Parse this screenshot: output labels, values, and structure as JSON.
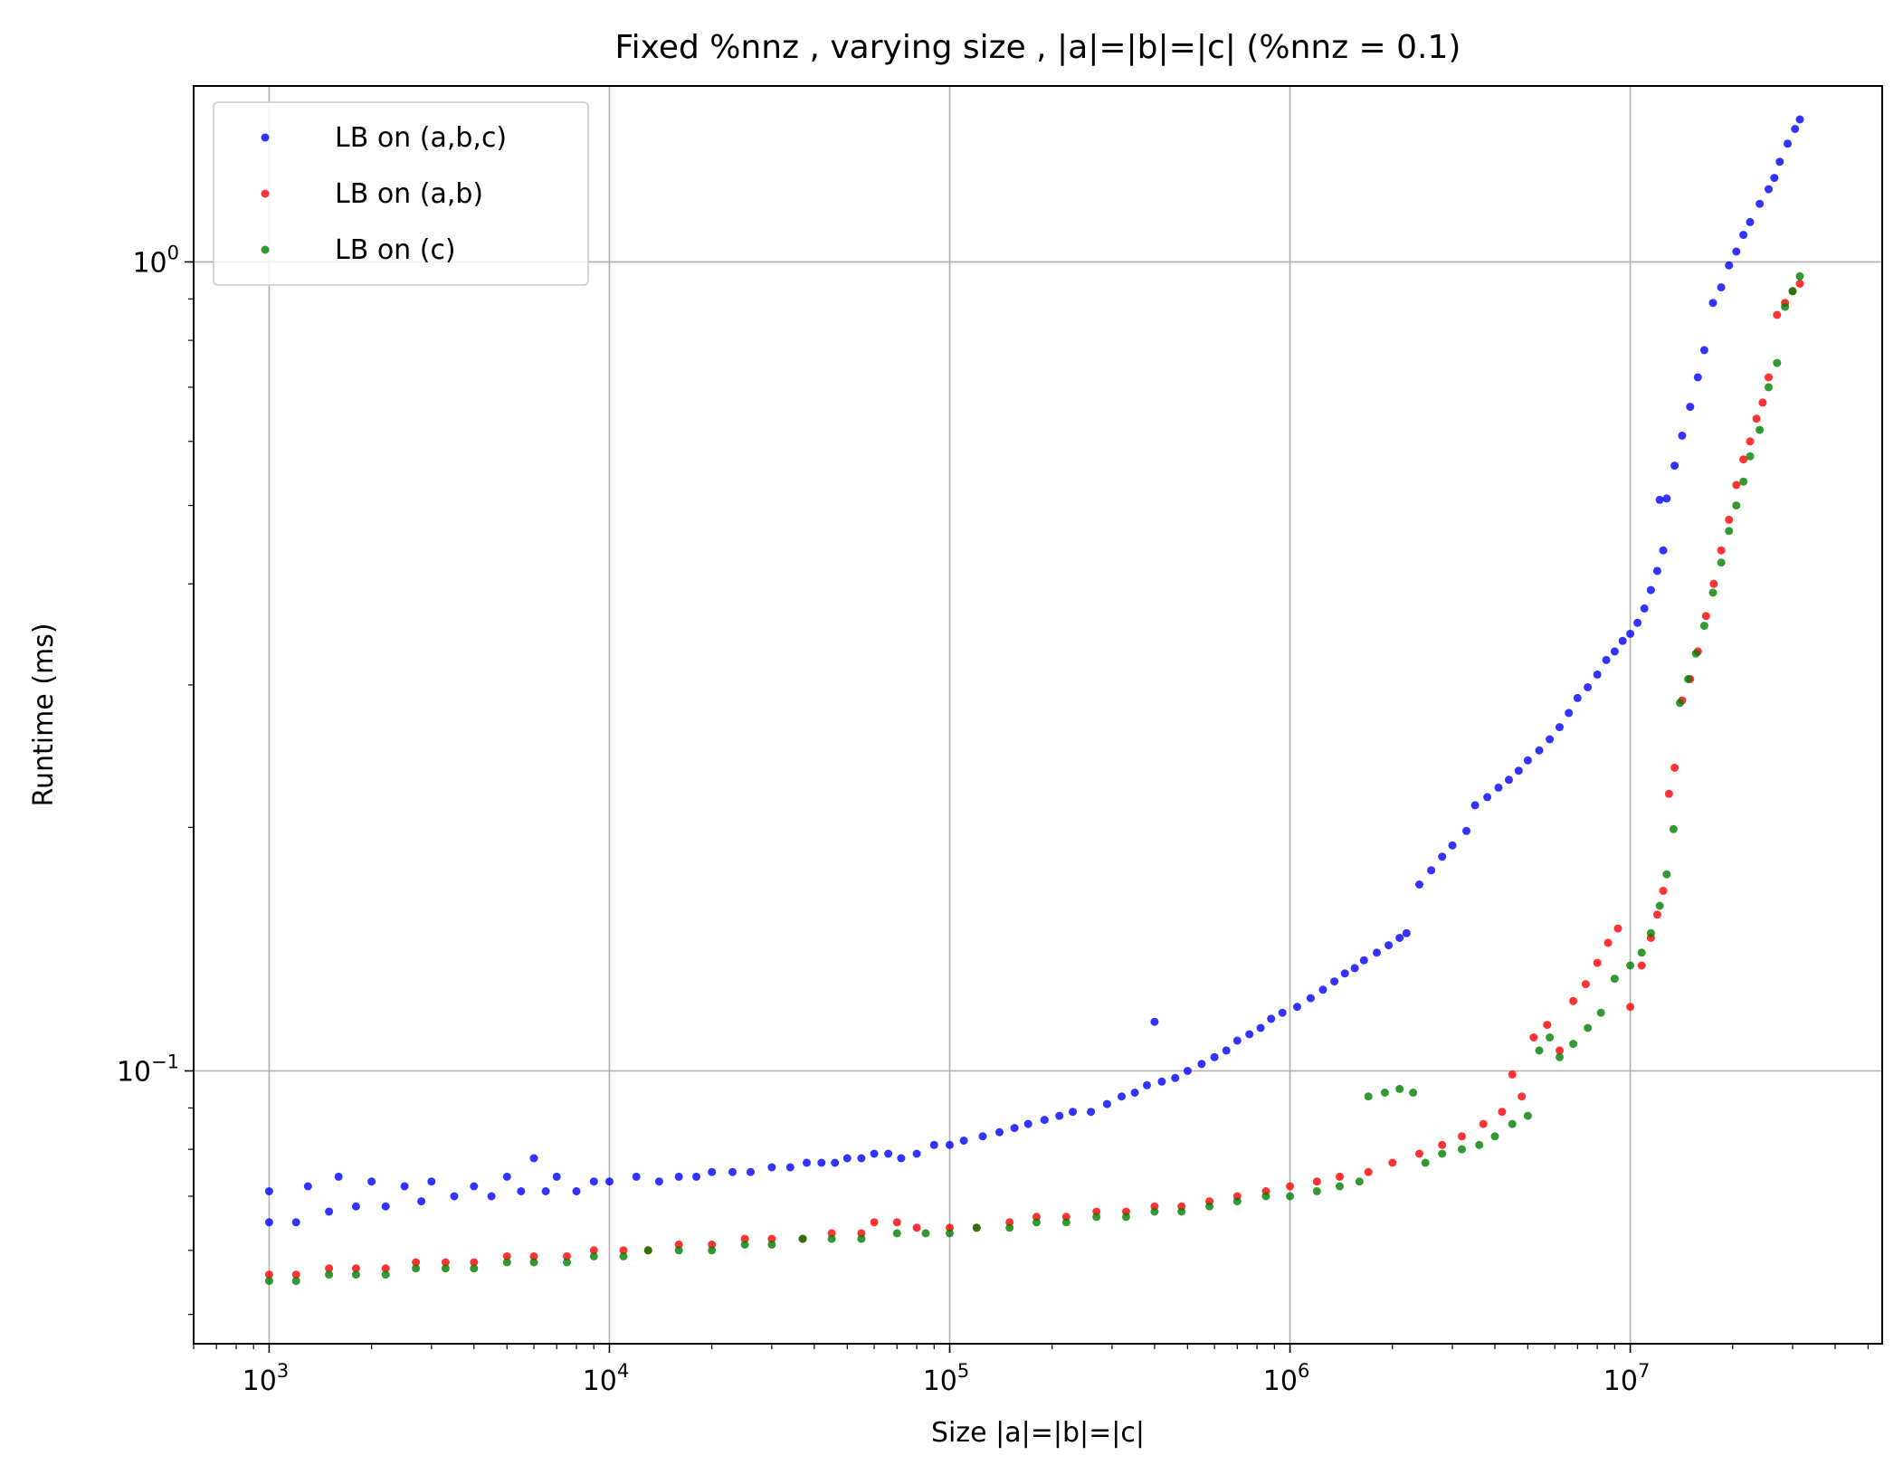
{
  "chart_data": {
    "type": "scatter",
    "title": "Fixed %nnz , varying size , |a|=|b|=|c| (%nnz = 0.1)",
    "xlabel": "Size |a|=|b|=|c|",
    "ylabel": "Runtime (ms)",
    "xscale": "log",
    "yscale": "log",
    "xlim": [
      600,
      55000000
    ],
    "ylim": [
      0.046,
      1.65
    ],
    "grid": true,
    "legend_position": "top-left",
    "x_ticks": [
      {
        "value": 1000,
        "base": "10",
        "exp": "3"
      },
      {
        "value": 10000,
        "base": "10",
        "exp": "4"
      },
      {
        "value": 100000,
        "base": "10",
        "exp": "5"
      },
      {
        "value": 1000000,
        "base": "10",
        "exp": "6"
      },
      {
        "value": 10000000,
        "base": "10",
        "exp": "7"
      }
    ],
    "y_ticks": [
      {
        "value": 1.0,
        "base": "10",
        "exp": "0"
      },
      {
        "value": 0.1,
        "base": "10",
        "exp": "−1"
      }
    ],
    "series": [
      {
        "name": "LB on (a,b,c)",
        "color": "#0000ff",
        "points": [
          [
            1000,
            0.065
          ],
          [
            1000,
            0.071
          ],
          [
            1200,
            0.065
          ],
          [
            1300,
            0.072
          ],
          [
            1500,
            0.067
          ],
          [
            1600,
            0.074
          ],
          [
            1800,
            0.068
          ],
          [
            2000,
            0.073
          ],
          [
            2200,
            0.068
          ],
          [
            2500,
            0.072
          ],
          [
            2800,
            0.069
          ],
          [
            3000,
            0.073
          ],
          [
            3500,
            0.07
          ],
          [
            4000,
            0.072
          ],
          [
            4500,
            0.07
          ],
          [
            5000,
            0.074
          ],
          [
            5500,
            0.071
          ],
          [
            6000,
            0.078
          ],
          [
            6500,
            0.071
          ],
          [
            7000,
            0.074
          ],
          [
            8000,
            0.071
          ],
          [
            9000,
            0.073
          ],
          [
            10000,
            0.073
          ],
          [
            12000,
            0.074
          ],
          [
            14000,
            0.073
          ],
          [
            16000,
            0.074
          ],
          [
            18000,
            0.074
          ],
          [
            20000,
            0.075
          ],
          [
            23000,
            0.075
          ],
          [
            26000,
            0.075
          ],
          [
            30000,
            0.076
          ],
          [
            34000,
            0.076
          ],
          [
            38000,
            0.077
          ],
          [
            42000,
            0.077
          ],
          [
            46000,
            0.077
          ],
          [
            50000,
            0.078
          ],
          [
            55000,
            0.078
          ],
          [
            60000,
            0.079
          ],
          [
            66000,
            0.079
          ],
          [
            72000,
            0.078
          ],
          [
            80000,
            0.079
          ],
          [
            90000,
            0.081
          ],
          [
            100000,
            0.081
          ],
          [
            110000,
            0.082
          ],
          [
            125000,
            0.083
          ],
          [
            140000,
            0.084
          ],
          [
            155000,
            0.085
          ],
          [
            170000,
            0.086
          ],
          [
            190000,
            0.087
          ],
          [
            210000,
            0.088
          ],
          [
            230000,
            0.089
          ],
          [
            260000,
            0.089
          ],
          [
            290000,
            0.091
          ],
          [
            320000,
            0.093
          ],
          [
            350000,
            0.094
          ],
          [
            380000,
            0.096
          ],
          [
            400000,
            0.115
          ],
          [
            420000,
            0.097
          ],
          [
            460000,
            0.098
          ],
          [
            500000,
            0.1
          ],
          [
            550000,
            0.102
          ],
          [
            600000,
            0.104
          ],
          [
            650000,
            0.106
          ],
          [
            700000,
            0.109
          ],
          [
            760000,
            0.111
          ],
          [
            820000,
            0.113
          ],
          [
            880000,
            0.116
          ],
          [
            950000,
            0.118
          ],
          [
            1050000,
            0.12
          ],
          [
            1150000,
            0.123
          ],
          [
            1250000,
            0.126
          ],
          [
            1350000,
            0.129
          ],
          [
            1450000,
            0.132
          ],
          [
            1550000,
            0.134
          ],
          [
            1650000,
            0.137
          ],
          [
            1800000,
            0.14
          ],
          [
            1950000,
            0.143
          ],
          [
            2100000,
            0.146
          ],
          [
            2200000,
            0.148
          ],
          [
            2400000,
            0.17
          ],
          [
            2600000,
            0.177
          ],
          [
            2800000,
            0.184
          ],
          [
            3000000,
            0.19
          ],
          [
            3300000,
            0.198
          ],
          [
            3500000,
            0.213
          ],
          [
            3800000,
            0.218
          ],
          [
            4100000,
            0.224
          ],
          [
            4400000,
            0.229
          ],
          [
            4700000,
            0.235
          ],
          [
            5000000,
            0.242
          ],
          [
            5400000,
            0.249
          ],
          [
            5800000,
            0.257
          ],
          [
            6200000,
            0.266
          ],
          [
            6600000,
            0.277
          ],
          [
            7000000,
            0.289
          ],
          [
            7500000,
            0.298
          ],
          [
            8000000,
            0.309
          ],
          [
            8500000,
            0.322
          ],
          [
            9000000,
            0.33
          ],
          [
            9500000,
            0.34
          ],
          [
            10000000,
            0.347
          ],
          [
            10500000,
            0.358
          ],
          [
            11000000,
            0.373
          ],
          [
            11500000,
            0.393
          ],
          [
            12000000,
            0.415
          ],
          [
            12500000,
            0.44
          ],
          [
            12200000,
            0.508
          ],
          [
            12800000,
            0.51
          ],
          [
            13500000,
            0.56
          ],
          [
            14200000,
            0.61
          ],
          [
            15000000,
            0.662
          ],
          [
            15800000,
            0.72
          ],
          [
            16500000,
            0.778
          ],
          [
            17500000,
            0.89
          ],
          [
            18500000,
            0.93
          ],
          [
            19500000,
            0.99
          ],
          [
            20500000,
            1.03
          ],
          [
            21500000,
            1.08
          ],
          [
            22500000,
            1.12
          ],
          [
            24000000,
            1.18
          ],
          [
            25500000,
            1.23
          ],
          [
            26500000,
            1.27
          ],
          [
            27500000,
            1.33
          ],
          [
            29000000,
            1.4
          ],
          [
            30500000,
            1.46
          ],
          [
            31500000,
            1.5
          ]
        ]
      },
      {
        "name": "LB on (a,b)",
        "color": "#ff0000",
        "points": [
          [
            1000,
            0.056
          ],
          [
            1200,
            0.056
          ],
          [
            1500,
            0.057
          ],
          [
            1800,
            0.057
          ],
          [
            2200,
            0.057
          ],
          [
            2700,
            0.058
          ],
          [
            3300,
            0.058
          ],
          [
            4000,
            0.058
          ],
          [
            5000,
            0.059
          ],
          [
            6000,
            0.059
          ],
          [
            7500,
            0.059
          ],
          [
            9000,
            0.06
          ],
          [
            11000,
            0.06
          ],
          [
            13000,
            0.06
          ],
          [
            16000,
            0.061
          ],
          [
            20000,
            0.061
          ],
          [
            25000,
            0.062
          ],
          [
            30000,
            0.062
          ],
          [
            37000,
            0.062
          ],
          [
            45000,
            0.063
          ],
          [
            55000,
            0.063
          ],
          [
            60000,
            0.065
          ],
          [
            70000,
            0.065
          ],
          [
            80000,
            0.064
          ],
          [
            100000,
            0.064
          ],
          [
            120000,
            0.064
          ],
          [
            150000,
            0.065
          ],
          [
            180000,
            0.066
          ],
          [
            220000,
            0.066
          ],
          [
            270000,
            0.067
          ],
          [
            330000,
            0.067
          ],
          [
            400000,
            0.068
          ],
          [
            480000,
            0.068
          ],
          [
            580000,
            0.069
          ],
          [
            700000,
            0.07
          ],
          [
            850000,
            0.071
          ],
          [
            1000000,
            0.072
          ],
          [
            1200000,
            0.073
          ],
          [
            1400000,
            0.074
          ],
          [
            1700000,
            0.075
          ],
          [
            2000000,
            0.077
          ],
          [
            2400000,
            0.079
          ],
          [
            2800000,
            0.081
          ],
          [
            3200000,
            0.083
          ],
          [
            3700000,
            0.086
          ],
          [
            4200000,
            0.089
          ],
          [
            4500000,
            0.099
          ],
          [
            4800000,
            0.093
          ],
          [
            5200000,
            0.11
          ],
          [
            5700000,
            0.114
          ],
          [
            6200000,
            0.106
          ],
          [
            6800000,
            0.122
          ],
          [
            7400000,
            0.128
          ],
          [
            8000000,
            0.136
          ],
          [
            8600000,
            0.144
          ],
          [
            9200000,
            0.15
          ],
          [
            10000000,
            0.12
          ],
          [
            10800000,
            0.135
          ],
          [
            11500000,
            0.146
          ],
          [
            12000000,
            0.156
          ],
          [
            12500000,
            0.167
          ],
          [
            13000000,
            0.22
          ],
          [
            13500000,
            0.237
          ],
          [
            14200000,
            0.287
          ],
          [
            15000000,
            0.305
          ],
          [
            15800000,
            0.33
          ],
          [
            16700000,
            0.365
          ],
          [
            17600000,
            0.4
          ],
          [
            18500000,
            0.44
          ],
          [
            19500000,
            0.48
          ],
          [
            20500000,
            0.53
          ],
          [
            21500000,
            0.57
          ],
          [
            22500000,
            0.6
          ],
          [
            23500000,
            0.64
          ],
          [
            24500000,
            0.67
          ],
          [
            25500000,
            0.72
          ],
          [
            27000000,
            0.86
          ],
          [
            28500000,
            0.89
          ],
          [
            30000000,
            0.92
          ],
          [
            31500000,
            0.94
          ]
        ]
      },
      {
        "name": "LB on (c)",
        "color": "#008000",
        "points": [
          [
            1000,
            0.055
          ],
          [
            1200,
            0.055
          ],
          [
            1500,
            0.056
          ],
          [
            1800,
            0.056
          ],
          [
            2200,
            0.056
          ],
          [
            2700,
            0.057
          ],
          [
            3300,
            0.057
          ],
          [
            4000,
            0.057
          ],
          [
            5000,
            0.058
          ],
          [
            6000,
            0.058
          ],
          [
            7500,
            0.058
          ],
          [
            9000,
            0.059
          ],
          [
            11000,
            0.059
          ],
          [
            13000,
            0.06
          ],
          [
            16000,
            0.06
          ],
          [
            20000,
            0.06
          ],
          [
            25000,
            0.061
          ],
          [
            30000,
            0.061
          ],
          [
            37000,
            0.062
          ],
          [
            45000,
            0.062
          ],
          [
            55000,
            0.062
          ],
          [
            70000,
            0.063
          ],
          [
            85000,
            0.063
          ],
          [
            100000,
            0.063
          ],
          [
            120000,
            0.064
          ],
          [
            150000,
            0.064
          ],
          [
            180000,
            0.065
          ],
          [
            220000,
            0.065
          ],
          [
            270000,
            0.066
          ],
          [
            330000,
            0.066
          ],
          [
            400000,
            0.067
          ],
          [
            480000,
            0.067
          ],
          [
            580000,
            0.068
          ],
          [
            700000,
            0.069
          ],
          [
            850000,
            0.07
          ],
          [
            1000000,
            0.07
          ],
          [
            1200000,
            0.071
          ],
          [
            1400000,
            0.072
          ],
          [
            1600000,
            0.073
          ],
          [
            1700000,
            0.093
          ],
          [
            1900000,
            0.094
          ],
          [
            2100000,
            0.095
          ],
          [
            2300000,
            0.094
          ],
          [
            2500000,
            0.077
          ],
          [
            2800000,
            0.079
          ],
          [
            3200000,
            0.08
          ],
          [
            3600000,
            0.081
          ],
          [
            4000000,
            0.083
          ],
          [
            4500000,
            0.086
          ],
          [
            5000000,
            0.088
          ],
          [
            5400000,
            0.106
          ],
          [
            5800000,
            0.11
          ],
          [
            6200000,
            0.104
          ],
          [
            6800000,
            0.108
          ],
          [
            7500000,
            0.113
          ],
          [
            8200000,
            0.118
          ],
          [
            9000000,
            0.13
          ],
          [
            10000000,
            0.135
          ],
          [
            10800000,
            0.14
          ],
          [
            11500000,
            0.148
          ],
          [
            12200000,
            0.16
          ],
          [
            12800000,
            0.175
          ],
          [
            13400000,
            0.199
          ],
          [
            14000000,
            0.285
          ],
          [
            14800000,
            0.305
          ],
          [
            15600000,
            0.328
          ],
          [
            16500000,
            0.355
          ],
          [
            17500000,
            0.39
          ],
          [
            18500000,
            0.425
          ],
          [
            19500000,
            0.465
          ],
          [
            20500000,
            0.5
          ],
          [
            21500000,
            0.535
          ],
          [
            22500000,
            0.575
          ],
          [
            24000000,
            0.62
          ],
          [
            25500000,
            0.7
          ],
          [
            27000000,
            0.75
          ],
          [
            28500000,
            0.88
          ],
          [
            30000000,
            0.92
          ],
          [
            31500000,
            0.96
          ]
        ]
      }
    ]
  }
}
